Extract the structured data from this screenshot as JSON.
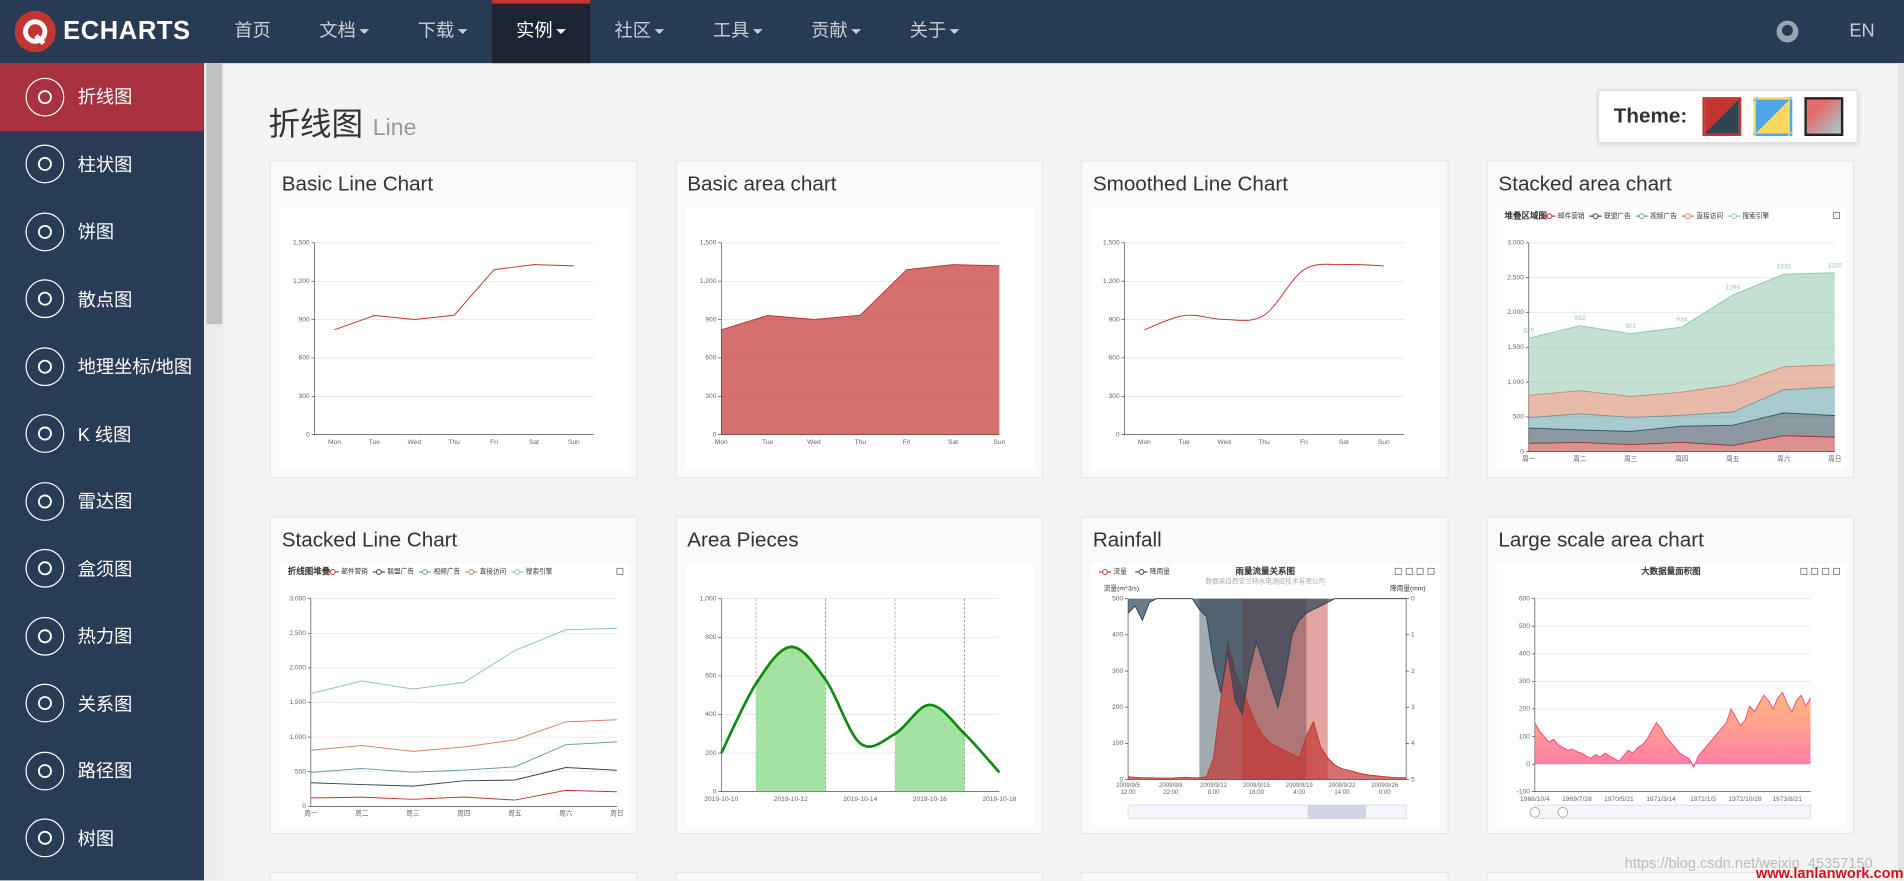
{
  "nav": {
    "logo": "ECHARTS",
    "items": [
      "首页",
      "文档",
      "下载",
      "实例",
      "社区",
      "工具",
      "贡献",
      "关于"
    ],
    "lang": "EN"
  },
  "sidebar": {
    "items": [
      "折线图",
      "柱状图",
      "饼图",
      "散点图",
      "地理坐标/地图",
      "K 线图",
      "雷达图",
      "盒须图",
      "热力图",
      "关系图",
      "路径图",
      "树图"
    ]
  },
  "header": {
    "title": "折线图",
    "subtitle": "Line",
    "theme_label": "Theme:"
  },
  "watermark": [
    "https://blog.csdn.net/weixin_45357150",
    "www.lanlanwork.com"
  ],
  "chart_data": [
    {
      "type": "line",
      "title": "Basic Line Chart",
      "categories": [
        "Mon",
        "Tue",
        "Wed",
        "Thu",
        "Fri",
        "Sat",
        "Sun"
      ],
      "values": [
        820,
        932,
        901,
        934,
        1290,
        1330,
        1320
      ],
      "color": "#c23531",
      "ylim": [
        0,
        1500
      ],
      "yticks": [
        0,
        300,
        600,
        900,
        {
          "value": 1200,
          "label": "1,200"
        },
        {
          "value": 1500,
          "label": "1,500"
        }
      ],
      "boundary_gap": true,
      "grid": true
    },
    {
      "type": "area",
      "title": "Basic area chart",
      "categories": [
        "Mon",
        "Tue",
        "Wed",
        "Thu",
        "Fri",
        "Sat",
        "Sun"
      ],
      "values": [
        820,
        932,
        901,
        934,
        1290,
        1330,
        1320
      ],
      "color": "#c23531",
      "ylim": [
        0,
        1500
      ],
      "yticks": [
        0,
        300,
        600,
        900,
        {
          "value": 1200,
          "label": "1,200"
        },
        {
          "value": 1500,
          "label": "1,500"
        }
      ],
      "boundary_gap": false,
      "grid": true
    },
    {
      "type": "line",
      "title": "Smoothed Line Chart",
      "smooth": true,
      "categories": [
        "Mon",
        "Tue",
        "Wed",
        "Thu",
        "Fri",
        "Sat",
        "Sun"
      ],
      "values": [
        820,
        932,
        901,
        934,
        1290,
        1330,
        1320
      ],
      "color": "#c23531",
      "ylim": [
        0,
        1500
      ],
      "yticks": [
        0,
        300,
        600,
        900,
        {
          "value": 1200,
          "label": "1,200"
        },
        {
          "value": 1500,
          "label": "1,500"
        }
      ],
      "boundary_gap": true,
      "grid": true
    },
    {
      "type": "area",
      "title": "Stacked area chart",
      "chart_title": "堆叠区域图",
      "stacked": true,
      "categories": [
        "周一",
        "周二",
        "周三",
        "周四",
        "周五",
        "周六",
        "周日"
      ],
      "series": [
        {
          "name": "邮件营销",
          "color": "#c23531",
          "values": [
            120,
            132,
            101,
            134,
            90,
            230,
            210
          ]
        },
        {
          "name": "联盟广告",
          "color": "#2f4554",
          "values": [
            220,
            182,
            191,
            234,
            290,
            330,
            310
          ]
        },
        {
          "name": "视频广告",
          "color": "#61a0a8",
          "values": [
            150,
            232,
            201,
            154,
            190,
            330,
            410
          ]
        },
        {
          "name": "直接访问",
          "color": "#d48265",
          "values": [
            320,
            332,
            301,
            334,
            390,
            330,
            320
          ]
        },
        {
          "name": "搜索引擎",
          "color": "#91c7ae",
          "values": [
            820,
            932,
            901,
            934,
            1290,
            1330,
            1320
          ],
          "labels": true
        }
      ],
      "ylim": [
        0,
        3000
      ],
      "yticks": [
        0,
        500,
        {
          "value": 1000,
          "label": "1,000"
        },
        {
          "value": 1500,
          "label": "1,500"
        },
        {
          "value": 2000,
          "label": "2,000"
        },
        {
          "value": 2500,
          "label": "2,500"
        },
        {
          "value": 3000,
          "label": "3,000"
        }
      ],
      "boundary_gap": false,
      "grid": true
    },
    {
      "type": "line",
      "title": "Stacked Line Chart",
      "chart_title": "折线图堆叠",
      "stacked": true,
      "categories": [
        "周一",
        "周二",
        "周三",
        "周四",
        "周五",
        "周六",
        "周日"
      ],
      "series": [
        {
          "name": "邮件营销",
          "color": "#c23531",
          "values": [
            120,
            132,
            101,
            134,
            90,
            230,
            210
          ]
        },
        {
          "name": "联盟广告",
          "color": "#2f4554",
          "values": [
            220,
            182,
            191,
            234,
            290,
            330,
            310
          ]
        },
        {
          "name": "视频广告",
          "color": "#61a0a8",
          "values": [
            150,
            232,
            201,
            154,
            190,
            330,
            410
          ]
        },
        {
          "name": "直接访问",
          "color": "#d48265",
          "values": [
            320,
            332,
            301,
            334,
            390,
            330,
            320
          ]
        },
        {
          "name": "搜索引擎",
          "color": "#91c7ae",
          "values": [
            820,
            932,
            901,
            934,
            1290,
            1330,
            1320
          ]
        }
      ],
      "ylim": [
        0,
        3000
      ],
      "yticks": [
        0,
        500,
        {
          "value": 1000,
          "label": "1,000"
        },
        {
          "value": 1500,
          "label": "1,500"
        },
        {
          "value": 2000,
          "label": "2,000"
        },
        {
          "value": 2500,
          "label": "2,500"
        },
        {
          "value": 3000,
          "label": "3,000"
        }
      ],
      "boundary_gap": false,
      "grid": true
    },
    {
      "type": "area",
      "title": "Area Pieces",
      "smooth": true,
      "categories": [
        "2019-10-10",
        null,
        "2019-10-12",
        null,
        "2019-10-14",
        null,
        "2019-10-16",
        null,
        "2019-10-18"
      ],
      "values": [
        200,
        560,
        750,
        580,
        250,
        300,
        450,
        300,
        100
      ],
      "color": "#0f8a0f",
      "piece_color": "#a3e2a0",
      "pieces": [
        {
          "gt": 1,
          "lt": 3
        },
        {
          "gt": 5,
          "lt": 7
        }
      ],
      "ylim": [
        0,
        1000
      ],
      "yticks": [
        0,
        200,
        400,
        600,
        800,
        {
          "value": 1000,
          "label": "1,000"
        }
      ],
      "boundary_gap": false,
      "grid": true
    },
    {
      "type": "area",
      "title": "Rainfall",
      "chart_title": "雨量流量关系图",
      "chart_subtitle": "数据来自西安兰特水电测控技术有限公司",
      "y_name": "流量(m^3/s)",
      "y2_name": "降雨量(mm)",
      "categories": [
        "2009/9/5\n12:00",
        null,
        null,
        null,
        null,
        null,
        "2009/9/8\n22:00",
        null,
        null,
        null,
        null,
        null,
        "2009/9/12\n8:00",
        null,
        null,
        null,
        null,
        null,
        "2009/9/15\n18:00",
        null,
        null,
        null,
        null,
        null,
        "2009/9/19\n4:00",
        null,
        null,
        null,
        null,
        null,
        "2009/9/22\n14:00",
        null,
        null,
        null,
        null,
        null,
        "2009/9/26\n0:00",
        null,
        null,
        null
      ],
      "series": [
        {
          "name": "流量",
          "color": "#c23531",
          "values": [
            8,
            6,
            5,
            5,
            4,
            4,
            4,
            5,
            6,
            5,
            5,
            8,
            60,
            220,
            380,
            300,
            250,
            200,
            150,
            120,
            100,
            90,
            80,
            70,
            60,
            120,
            160,
            90,
            60,
            40,
            30,
            25,
            20,
            15,
            12,
            10,
            8,
            6,
            5,
            5
          ]
        },
        {
          "name": "降雨量",
          "color": "#2f4554",
          "axis": "y2",
          "values": [
            0.4,
            0.2,
            0.6,
            0.1,
            0,
            0,
            0,
            0,
            0,
            0,
            0.3,
            0.5,
            1.8,
            2.6,
            1.5,
            2.8,
            3.2,
            2.0,
            1.2,
            1.8,
            2.4,
            3.0,
            2.2,
            1.0,
            0.6,
            0.4,
            0.3,
            0.2,
            0.1,
            0,
            0,
            0,
            0,
            0,
            0,
            0,
            0,
            0,
            0,
            0
          ]
        }
      ],
      "mark_areas": [
        {
          "from": 10,
          "to": 25,
          "color": "#2f4554"
        },
        {
          "from": 16,
          "to": 28,
          "color": "#c23531"
        }
      ],
      "ylim": [
        0,
        500
      ],
      "yticks": [
        0,
        100,
        200,
        300,
        400,
        500
      ],
      "y2lim": [
        5,
        0
      ],
      "y2ticks": [
        0,
        1,
        2,
        3,
        4,
        5
      ],
      "boundary_gap": false,
      "grid": false
    },
    {
      "type": "area",
      "title": "Large scale area chart",
      "chart_title": "大数据量面积图",
      "categories": [
        "1968/10/4",
        null,
        null,
        null,
        null,
        null,
        null,
        null,
        null,
        "1969/7/28",
        null,
        null,
        null,
        null,
        null,
        null,
        null,
        null,
        "1970/5/21",
        null,
        null,
        null,
        null,
        null,
        null,
        null,
        null,
        "1971/3/14",
        null,
        null,
        null,
        null,
        null,
        null,
        null,
        null,
        "1972/1/5",
        null,
        null,
        null,
        null,
        null,
        null,
        null,
        null,
        "1972/10/28",
        null,
        null,
        null,
        null,
        null,
        null,
        null,
        null,
        "1973/8/21",
        null,
        null,
        null,
        null,
        null
      ],
      "values": [
        150,
        120,
        100,
        80,
        90,
        70,
        60,
        50,
        55,
        45,
        40,
        30,
        20,
        35,
        25,
        40,
        30,
        20,
        10,
        30,
        50,
        40,
        60,
        70,
        90,
        120,
        150,
        130,
        100,
        80,
        60,
        40,
        30,
        20,
        -10,
        30,
        50,
        70,
        90,
        110,
        130,
        150,
        200,
        170,
        140,
        160,
        210,
        190,
        220,
        250,
        230,
        200,
        240,
        260,
        220,
        190,
        230,
        250,
        210,
        240
      ],
      "color": "#ff4683",
      "gradient": [
        "#ff9e44",
        "#ff4683"
      ],
      "ylim": [
        -100,
        600
      ],
      "yticks": [
        -100,
        0,
        100,
        200,
        300,
        400,
        500,
        600
      ],
      "boundary_gap": false,
      "grid": true
    }
  ]
}
